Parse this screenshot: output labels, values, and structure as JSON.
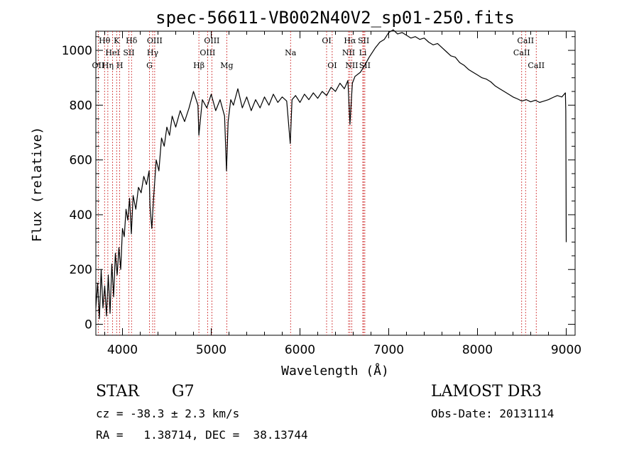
{
  "chart_data": {
    "type": "line",
    "title": "spec-56611-VB002N40V2_sp01-250.fits",
    "xlabel": "Wavelength (Å)",
    "ylabel": "Flux (relative)",
    "xlim": [
      3700,
      9100
    ],
    "ylim": [
      -40,
      1070
    ],
    "x_ticks": [
      4000,
      5000,
      6000,
      7000,
      8000,
      9000
    ],
    "y_ticks": [
      0,
      200,
      400,
      600,
      800,
      1000
    ],
    "grid": false,
    "series": [
      {
        "name": "spectrum",
        "color": "#000000",
        "points": [
          [
            3700,
            60
          ],
          [
            3720,
            150
          ],
          [
            3740,
            20
          ],
          [
            3760,
            200
          ],
          [
            3780,
            60
          ],
          [
            3800,
            140
          ],
          [
            3820,
            30
          ],
          [
            3840,
            180
          ],
          [
            3860,
            40
          ],
          [
            3880,
            220
          ],
          [
            3900,
            100
          ],
          [
            3920,
            260
          ],
          [
            3940,
            180
          ],
          [
            3960,
            280
          ],
          [
            3980,
            200
          ],
          [
            4000,
            350
          ],
          [
            4020,
            320
          ],
          [
            4040,
            420
          ],
          [
            4060,
            380
          ],
          [
            4080,
            460
          ],
          [
            4100,
            330
          ],
          [
            4120,
            470
          ],
          [
            4150,
            420
          ],
          [
            4180,
            500
          ],
          [
            4210,
            480
          ],
          [
            4240,
            540
          ],
          [
            4270,
            510
          ],
          [
            4300,
            560
          ],
          [
            4310,
            430
          ],
          [
            4330,
            350
          ],
          [
            4350,
            460
          ],
          [
            4380,
            600
          ],
          [
            4410,
            560
          ],
          [
            4440,
            680
          ],
          [
            4470,
            650
          ],
          [
            4500,
            720
          ],
          [
            4530,
            690
          ],
          [
            4560,
            760
          ],
          [
            4600,
            720
          ],
          [
            4650,
            780
          ],
          [
            4700,
            740
          ],
          [
            4750,
            790
          ],
          [
            4800,
            850
          ],
          [
            4850,
            800
          ],
          [
            4861,
            690
          ],
          [
            4900,
            820
          ],
          [
            4950,
            790
          ],
          [
            5000,
            840
          ],
          [
            5050,
            780
          ],
          [
            5100,
            820
          ],
          [
            5150,
            760
          ],
          [
            5172,
            560
          ],
          [
            5190,
            740
          ],
          [
            5220,
            820
          ],
          [
            5250,
            800
          ],
          [
            5300,
            860
          ],
          [
            5350,
            790
          ],
          [
            5400,
            830
          ],
          [
            5450,
            780
          ],
          [
            5500,
            820
          ],
          [
            5550,
            790
          ],
          [
            5600,
            830
          ],
          [
            5650,
            800
          ],
          [
            5700,
            840
          ],
          [
            5750,
            810
          ],
          [
            5800,
            830
          ],
          [
            5850,
            815
          ],
          [
            5890,
            660
          ],
          [
            5910,
            820
          ],
          [
            5950,
            835
          ],
          [
            6000,
            810
          ],
          [
            6050,
            840
          ],
          [
            6100,
            820
          ],
          [
            6150,
            845
          ],
          [
            6200,
            825
          ],
          [
            6250,
            850
          ],
          [
            6300,
            835
          ],
          [
            6350,
            865
          ],
          [
            6400,
            850
          ],
          [
            6450,
            880
          ],
          [
            6500,
            860
          ],
          [
            6540,
            890
          ],
          [
            6563,
            730
          ],
          [
            6590,
            880
          ],
          [
            6620,
            905
          ],
          [
            6680,
            920
          ],
          [
            6720,
            940
          ],
          [
            6780,
            975
          ],
          [
            6850,
            1010
          ],
          [
            6900,
            1030
          ],
          [
            6950,
            1040
          ],
          [
            7000,
            1065
          ],
          [
            7050,
            1075
          ],
          [
            7100,
            1060
          ],
          [
            7150,
            1065
          ],
          [
            7200,
            1055
          ],
          [
            7250,
            1045
          ],
          [
            7300,
            1050
          ],
          [
            7350,
            1040
          ],
          [
            7400,
            1045
          ],
          [
            7450,
            1030
          ],
          [
            7500,
            1020
          ],
          [
            7550,
            1025
          ],
          [
            7600,
            1010
          ],
          [
            7650,
            995
          ],
          [
            7700,
            980
          ],
          [
            7750,
            975
          ],
          [
            7800,
            955
          ],
          [
            7850,
            945
          ],
          [
            7900,
            930
          ],
          [
            7950,
            920
          ],
          [
            8000,
            910
          ],
          [
            8050,
            900
          ],
          [
            8100,
            895
          ],
          [
            8150,
            885
          ],
          [
            8200,
            870
          ],
          [
            8250,
            860
          ],
          [
            8300,
            850
          ],
          [
            8350,
            840
          ],
          [
            8400,
            830
          ],
          [
            8450,
            823
          ],
          [
            8500,
            815
          ],
          [
            8550,
            820
          ],
          [
            8600,
            812
          ],
          [
            8650,
            818
          ],
          [
            8700,
            810
          ],
          [
            8750,
            815
          ],
          [
            8800,
            820
          ],
          [
            8850,
            828
          ],
          [
            8900,
            835
          ],
          [
            8950,
            830
          ],
          [
            8990,
            845
          ],
          [
            8995,
            780
          ],
          [
            9000,
            300
          ]
        ]
      }
    ],
    "spectral_lines": [
      {
        "label": "Hθ",
        "wavelength": 3798,
        "row": 1
      },
      {
        "label": "OII",
        "wavelength": 3727,
        "row": 3
      },
      {
        "label": "HeI",
        "wavelength": 3889,
        "row": 2
      },
      {
        "label": "K",
        "wavelength": 3934,
        "row": 1
      },
      {
        "label": "H",
        "wavelength": 3969,
        "row": 3
      },
      {
        "label": "Hη",
        "wavelength": 3835,
        "row": 3
      },
      {
        "label": "Hδ",
        "wavelength": 4102,
        "row": 1
      },
      {
        "label": "SII",
        "wavelength": 4072,
        "row": 2
      },
      {
        "label": "OIII",
        "wavelength": 4363,
        "row": 1
      },
      {
        "label": "Hγ",
        "wavelength": 4340,
        "row": 2
      },
      {
        "label": "G",
        "wavelength": 4304,
        "row": 3
      },
      {
        "label": "Hβ",
        "wavelength": 4861,
        "row": 3
      },
      {
        "label": "OIII",
        "wavelength": 5007,
        "row": 1
      },
      {
        "label": "OIII",
        "wavelength": 4959,
        "row": 2
      },
      {
        "label": "Mg",
        "wavelength": 5175,
        "row": 3
      },
      {
        "label": "Na",
        "wavelength": 5894,
        "row": 2
      },
      {
        "label": "OI",
        "wavelength": 6300,
        "row": 1
      },
      {
        "label": "OI",
        "wavelength": 6363,
        "row": 3
      },
      {
        "label": "Hα",
        "wavelength": 6563,
        "row": 1
      },
      {
        "label": "NII",
        "wavelength": 6548,
        "row": 2
      },
      {
        "label": "NII",
        "wavelength": 6583,
        "row": 3
      },
      {
        "label": "SII",
        "wavelength": 6717,
        "row": 1
      },
      {
        "label": "Li",
        "wavelength": 6708,
        "row": 2
      },
      {
        "label": "SII",
        "wavelength": 6731,
        "row": 3
      },
      {
        "label": "CaII",
        "wavelength": 8542,
        "row": 1
      },
      {
        "label": "CaII",
        "wavelength": 8498,
        "row": 2
      },
      {
        "label": "CaII",
        "wavelength": 8662,
        "row": 3
      }
    ]
  },
  "info": {
    "object_class": "STAR",
    "subclass": "G7",
    "survey": "LAMOST DR3",
    "redshift": "cz = -38.3 ± 2.3 km/s",
    "obs_date": "Obs-Date: 20131114",
    "coordinates": "RA =   1.38714, DEC =  38.13744"
  }
}
